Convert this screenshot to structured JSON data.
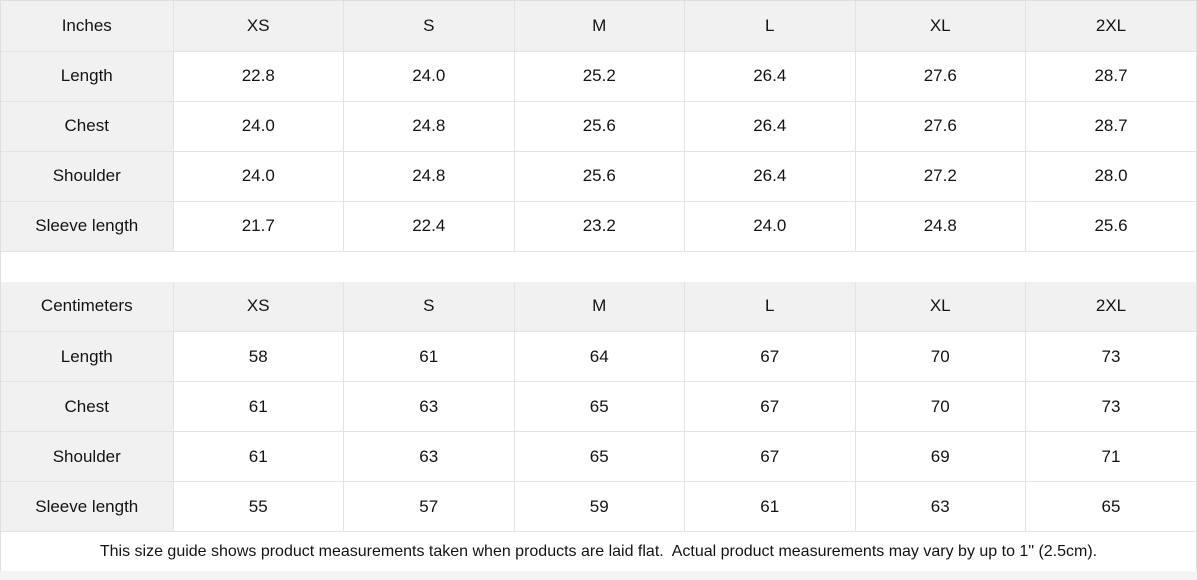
{
  "chart_data": [
    {
      "type": "table",
      "unit_label": "Inches",
      "columns": [
        "XS",
        "S",
        "M",
        "L",
        "XL",
        "2XL"
      ],
      "rows": [
        {
          "label": "Length",
          "values": [
            "22.8",
            "24.0",
            "25.2",
            "26.4",
            "27.6",
            "28.7"
          ]
        },
        {
          "label": "Chest",
          "values": [
            "24.0",
            "24.8",
            "25.6",
            "26.4",
            "27.6",
            "28.7"
          ]
        },
        {
          "label": "Shoulder",
          "values": [
            "24.0",
            "24.8",
            "25.6",
            "26.4",
            "27.2",
            "28.0"
          ]
        },
        {
          "label": "Sleeve length",
          "values": [
            "21.7",
            "22.4",
            "23.2",
            "24.0",
            "24.8",
            "25.6"
          ]
        }
      ]
    },
    {
      "type": "table",
      "unit_label": "Centimeters",
      "columns": [
        "XS",
        "S",
        "M",
        "L",
        "XL",
        "2XL"
      ],
      "rows": [
        {
          "label": "Length",
          "values": [
            "58",
            "61",
            "64",
            "67",
            "70",
            "73"
          ]
        },
        {
          "label": "Chest",
          "values": [
            "61",
            "63",
            "65",
            "67",
            "70",
            "73"
          ]
        },
        {
          "label": "Shoulder",
          "values": [
            "61",
            "63",
            "65",
            "67",
            "69",
            "71"
          ]
        },
        {
          "label": "Sleeve length",
          "values": [
            "55",
            "57",
            "59",
            "61",
            "63",
            "65"
          ]
        }
      ]
    }
  ],
  "footer": {
    "note": "This size guide shows product measurements taken when products are laid flat.  Actual product measurements may vary by up to 1\" (2.5cm)."
  },
  "colors": {
    "header_bg": "#f1f1f1",
    "border": "#e3e3e3",
    "text": "#141414",
    "background": "#ffffff"
  }
}
